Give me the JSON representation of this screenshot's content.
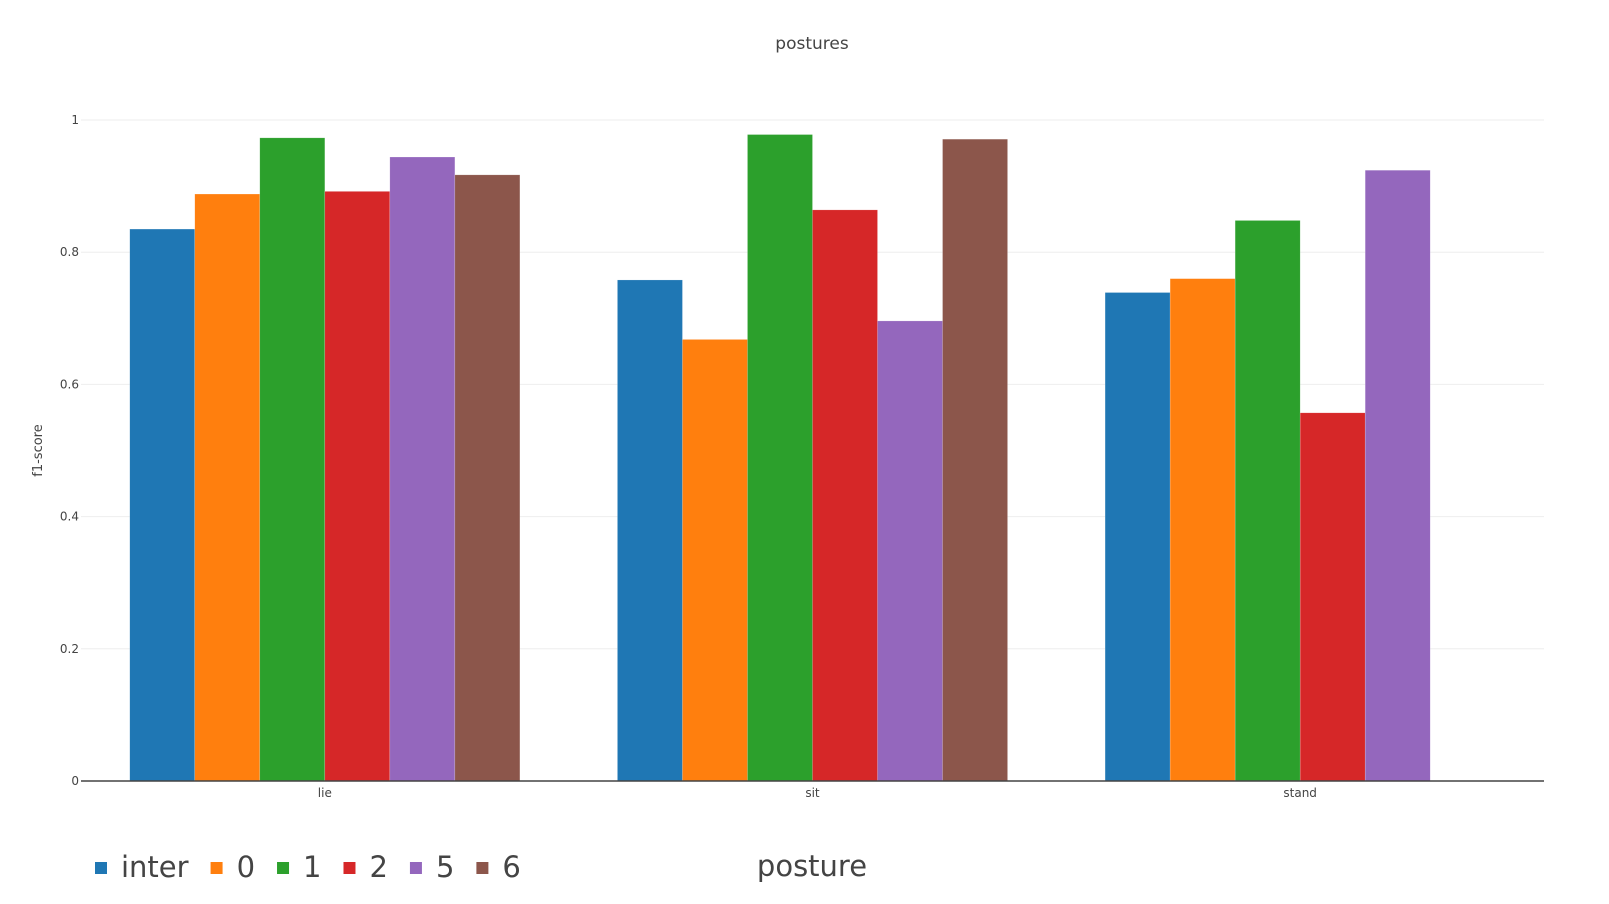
{
  "chart_data": {
    "type": "bar",
    "title": "postures",
    "xlabel": "posture",
    "ylabel": "f1-score",
    "categories": [
      "lie",
      "sit",
      "stand"
    ],
    "ylim": [
      0,
      1
    ],
    "yticks": [
      0,
      0.2,
      0.4,
      0.6,
      0.8,
      1
    ],
    "ytick_labels": [
      "0",
      "0.2",
      "0.4",
      "0.6",
      "0.8",
      "1"
    ],
    "grid": true,
    "legend_position": "bottom-left",
    "series": [
      {
        "name": "inter",
        "color": "#1f77b4",
        "values": [
          0.835,
          0.758,
          0.739
        ]
      },
      {
        "name": "0",
        "color": "#ff7f0e",
        "values": [
          0.888,
          0.668,
          0.76
        ]
      },
      {
        "name": "1",
        "color": "#2ca02c",
        "values": [
          0.973,
          0.978,
          0.848
        ]
      },
      {
        "name": "2",
        "color": "#d62728",
        "values": [
          0.892,
          0.864,
          0.557
        ]
      },
      {
        "name": "5",
        "color": "#9467bd",
        "values": [
          0.944,
          0.696,
          0.924
        ]
      },
      {
        "name": "6",
        "color": "#8c564b",
        "values": [
          0.917,
          0.971,
          null
        ]
      }
    ]
  }
}
